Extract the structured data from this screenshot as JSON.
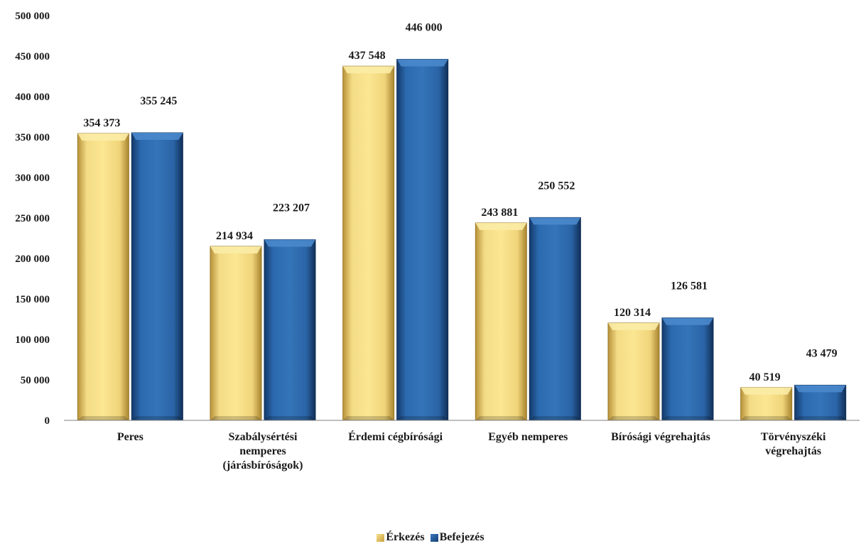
{
  "chart_data": {
    "type": "bar",
    "categories": [
      [
        "Peres"
      ],
      [
        "Szabálysértési",
        "nemperes",
        "(járásbíróságok)"
      ],
      [
        "Érdemi cégbírósági"
      ],
      [
        "Egyéb nemperes"
      ],
      [
        "Bírósági végrehajtás"
      ],
      [
        "Törvényszéki",
        "végrehajtás"
      ]
    ],
    "series": [
      {
        "name": "Érkezés",
        "values": [
          354373,
          214934,
          437548,
          243881,
          120314,
          40519
        ],
        "labels": [
          "354 373",
          "214 934",
          "437 548",
          "243 881",
          "120 314",
          "40 519"
        ],
        "color": "#e8c862"
      },
      {
        "name": "Befejezés",
        "values": [
          355245,
          223207,
          446000,
          250552,
          126581,
          43479
        ],
        "labels": [
          "355 245",
          "223 207",
          "446 000",
          "250 552",
          "126 581",
          "43 479"
        ],
        "color": "#2460a0"
      }
    ],
    "yticks": [
      "0",
      "50 000",
      "100 000",
      "150 000",
      "200 000",
      "250 000",
      "300 000",
      "350 000",
      "400 000",
      "450 000",
      "500 000"
    ],
    "ylim": [
      0,
      500000
    ],
    "grid": false,
    "legend_position": "bottom"
  }
}
